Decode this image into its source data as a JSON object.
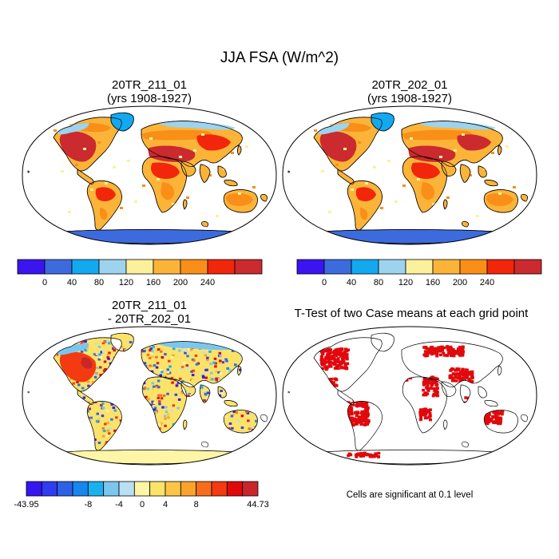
{
  "figure": {
    "title": "JJA FSA (W/m^2)"
  },
  "panels": [
    {
      "id": "case1",
      "title_line1": "20TR_211_01",
      "title_line2": "(yrs 1908-1927)"
    },
    {
      "id": "case2",
      "title_line1": "20TR_202_01",
      "title_line2": "(yrs 1908-1927)"
    },
    {
      "id": "diff",
      "title_line1": "20TR_211_01",
      "title_line2": "- 20TR_202_01"
    },
    {
      "id": "ttest",
      "title_line1": "T-Test of two Case means at each grid point",
      "title_line2": ""
    }
  ],
  "colorbar_main": {
    "colors": [
      "#3b14f0",
      "#3c6bde",
      "#12a9f0",
      "#9dd3ee",
      "#fbf19c",
      "#fbb438",
      "#f98f18",
      "#f2260a",
      "#cb2a2e"
    ],
    "ticks": [
      "0",
      "40",
      "80",
      "120",
      "160",
      "200",
      "240"
    ]
  },
  "colorbar_diff": {
    "colors": [
      "#3617f0",
      "#2f3cf2",
      "#2e62e6",
      "#1786ef",
      "#18b1ee",
      "#7bc6ee",
      "#b8dff2",
      "#fff5a7",
      "#fbe36a",
      "#fbc648",
      "#fba22c",
      "#f96c1e",
      "#f33a10",
      "#e0090c",
      "#c8262b"
    ],
    "ticks": [
      "-43.95",
      "-8",
      "-4",
      "0",
      "4",
      "8",
      "44.73"
    ]
  },
  "ttest_colors": {
    "significant": "#e0090c"
  },
  "note": "Cells are significant at 0.1 level"
}
